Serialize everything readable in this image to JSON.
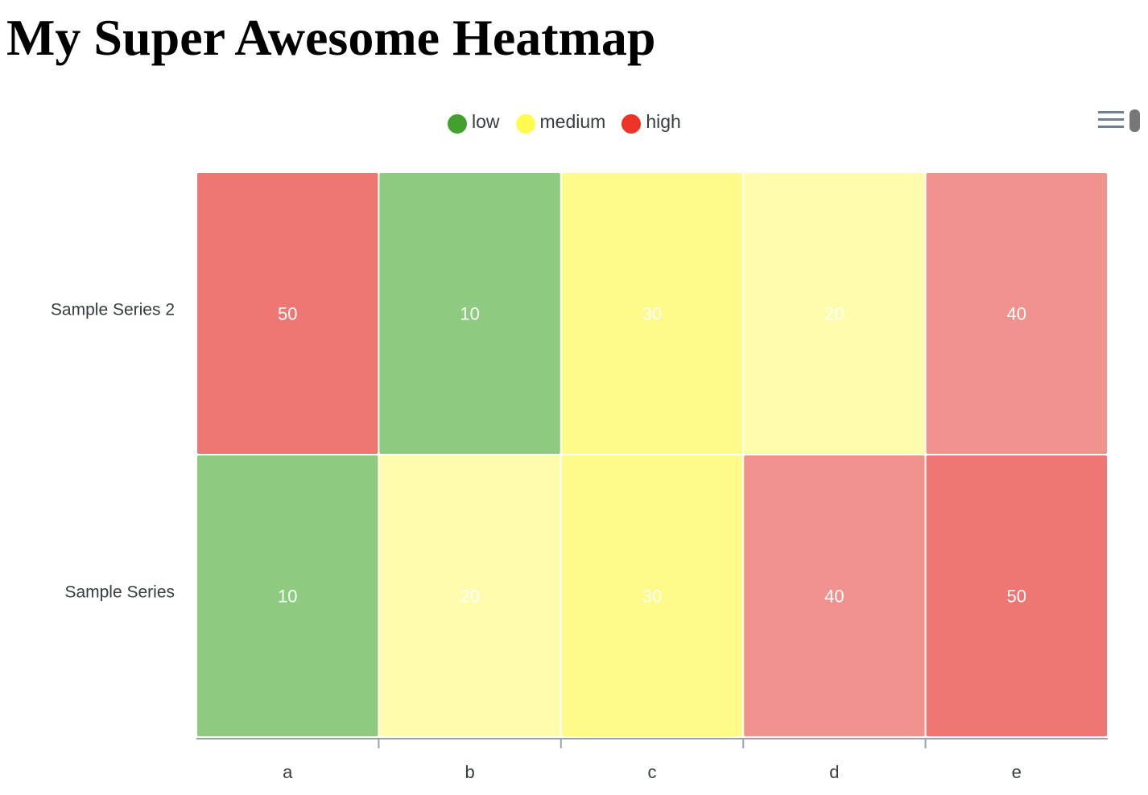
{
  "page": {
    "title": "My Super Awesome Heatmap"
  },
  "toolbar": {
    "menu_icon": "hamburger-menu-icon"
  },
  "colors": {
    "low": "#43a02f",
    "medium": "#fffb4f",
    "high": "#ec3426"
  },
  "chart_data": {
    "type": "heatmap",
    "title": "",
    "xlabel": "",
    "ylabel": "",
    "categories": [
      "a",
      "b",
      "c",
      "d",
      "e"
    ],
    "series": [
      {
        "name": "Sample Series",
        "values": [
          10,
          20,
          30,
          40,
          50
        ]
      },
      {
        "name": "Sample Series 2",
        "values": [
          50,
          10,
          30,
          20,
          40
        ]
      }
    ],
    "legend": {
      "position": "top",
      "items": [
        {
          "label": "low",
          "color": "#43a02f"
        },
        {
          "label": "medium",
          "color": "#fffb4f"
        },
        {
          "label": "high",
          "color": "#ec3426"
        }
      ]
    },
    "color_scale": [
      {
        "value": 10,
        "color": "#8ecb81"
      },
      {
        "value": 20,
        "color": "#fffdad"
      },
      {
        "value": 30,
        "color": "#fffb8a"
      },
      {
        "value": 40,
        "color": "#f0928e"
      },
      {
        "value": 50,
        "color": "#ee7773"
      }
    ],
    "data_labels": true,
    "grid": false
  }
}
